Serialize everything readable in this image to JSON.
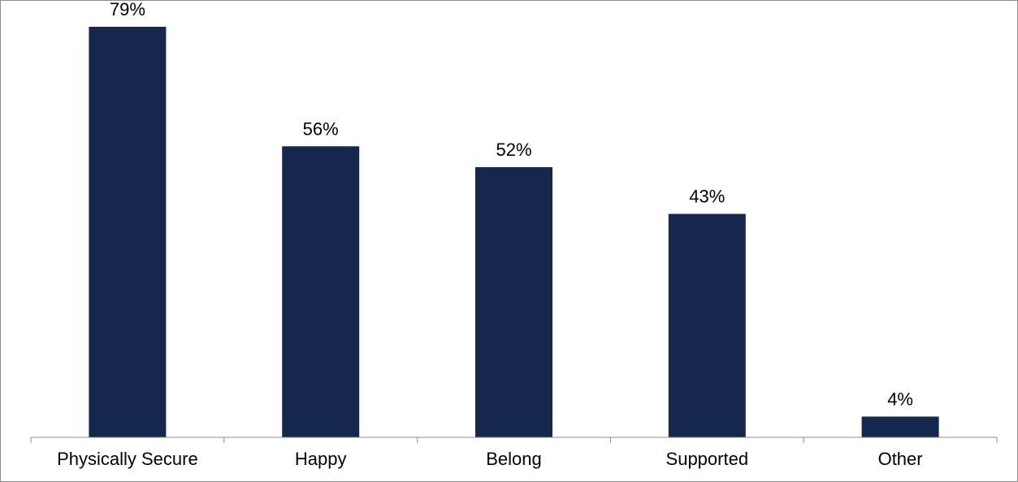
{
  "chart_data": {
    "type": "bar",
    "categories": [
      "Physically Secure",
      "Happy",
      "Belong",
      "Supported",
      "Other"
    ],
    "values": [
      79,
      56,
      52,
      43,
      4
    ],
    "data_labels": [
      "79%",
      "56%",
      "52%",
      "43%",
      "4%"
    ],
    "title": "",
    "xlabel": "",
    "ylabel": "",
    "ylim": [
      0,
      84
    ],
    "grid": false,
    "legend": "none",
    "colors": {
      "bar": "#15274d",
      "axis": "#8c8c8c",
      "border": "#8c8c8c"
    }
  }
}
